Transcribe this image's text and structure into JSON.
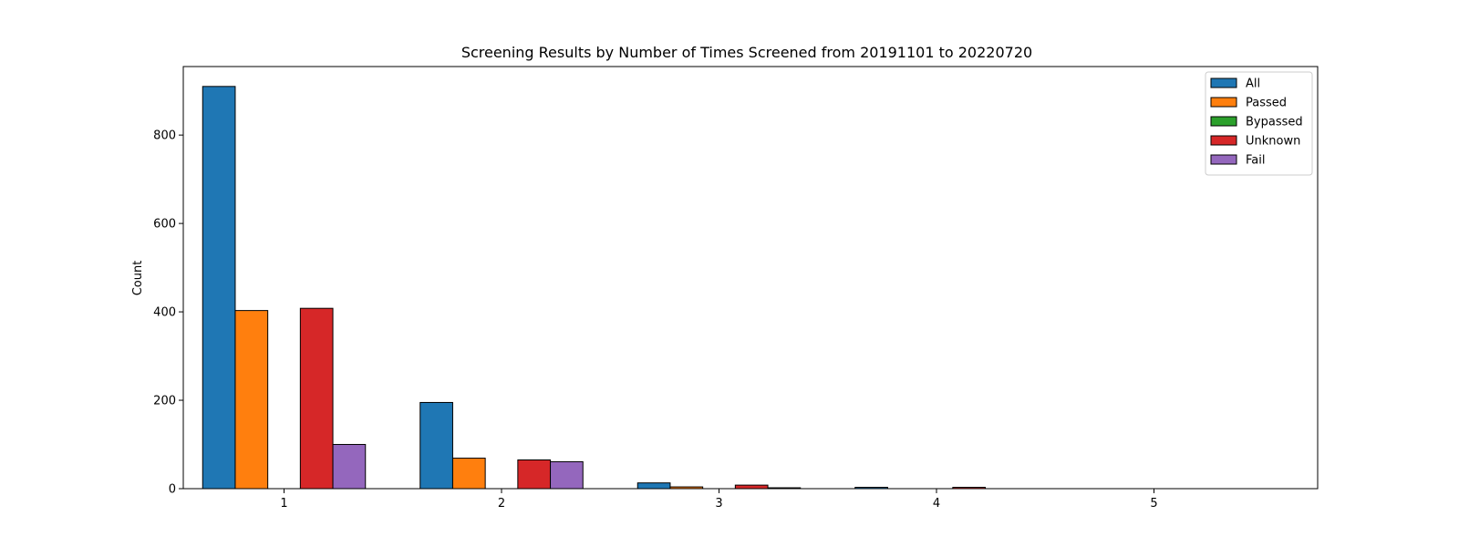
{
  "chart_data": {
    "type": "bar",
    "title": "Screening Results by Number of Times Screened from 20191101 to 20220720",
    "xlabel": "",
    "ylabel": "Count",
    "categories": [
      "1",
      "2",
      "3",
      "4",
      "5"
    ],
    "ylim": [
      0,
      955
    ],
    "yticks": [
      0,
      200,
      400,
      600,
      800
    ],
    "grid": false,
    "legend_position": "top-right",
    "series": [
      {
        "name": "All",
        "color": "#1f77b4",
        "values": [
          910,
          195,
          13,
          3,
          0
        ]
      },
      {
        "name": "Passed",
        "color": "#ff7f0e",
        "values": [
          403,
          69,
          4,
          0,
          0
        ]
      },
      {
        "name": "Bypassed",
        "color": "#2ca02c",
        "values": [
          0,
          0,
          0,
          0,
          0
        ]
      },
      {
        "name": "Unknown",
        "color": "#d62728",
        "values": [
          408,
          65,
          8,
          3,
          0
        ]
      },
      {
        "name": "Fail",
        "color": "#9467bd",
        "values": [
          100,
          61,
          2,
          0,
          0
        ]
      }
    ]
  }
}
